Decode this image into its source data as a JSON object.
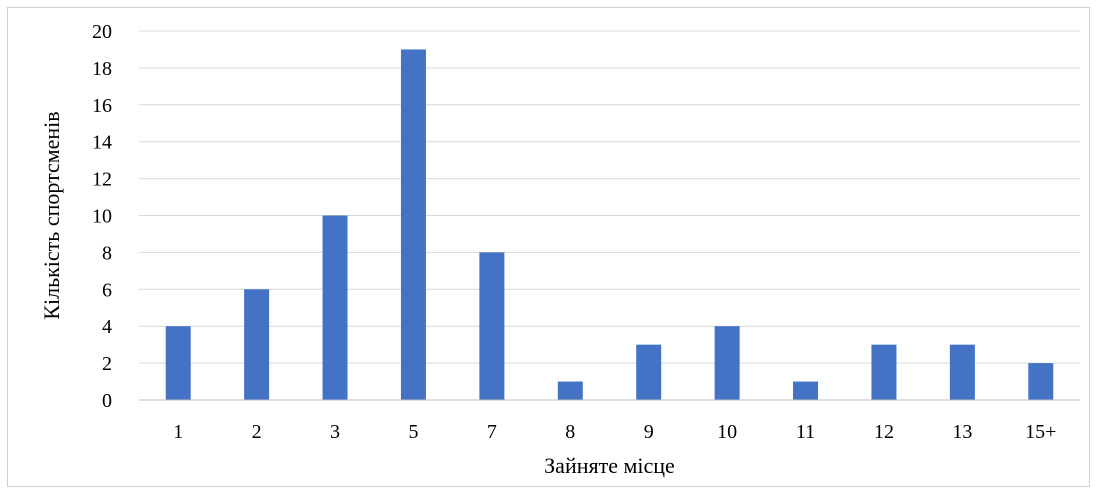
{
  "chart_data": {
    "type": "bar",
    "title": "",
    "xlabel": "Зайняте місце",
    "ylabel": "Кількість спортсменів",
    "categories": [
      "1",
      "2",
      "3",
      "5",
      "7",
      "8",
      "9",
      "10",
      "11",
      "12",
      "13",
      "15+"
    ],
    "values": [
      4,
      6,
      10,
      19,
      8,
      1,
      3,
      4,
      1,
      3,
      3,
      2
    ],
    "ylim": [
      0,
      20
    ],
    "yticks": [
      0,
      2,
      4,
      6,
      8,
      10,
      12,
      14,
      16,
      18,
      20
    ],
    "grid": true,
    "legend": "none",
    "colors": {
      "bar": "#4472C4",
      "grid": "#d9d9d9",
      "axis": "#bfbfbf"
    }
  }
}
